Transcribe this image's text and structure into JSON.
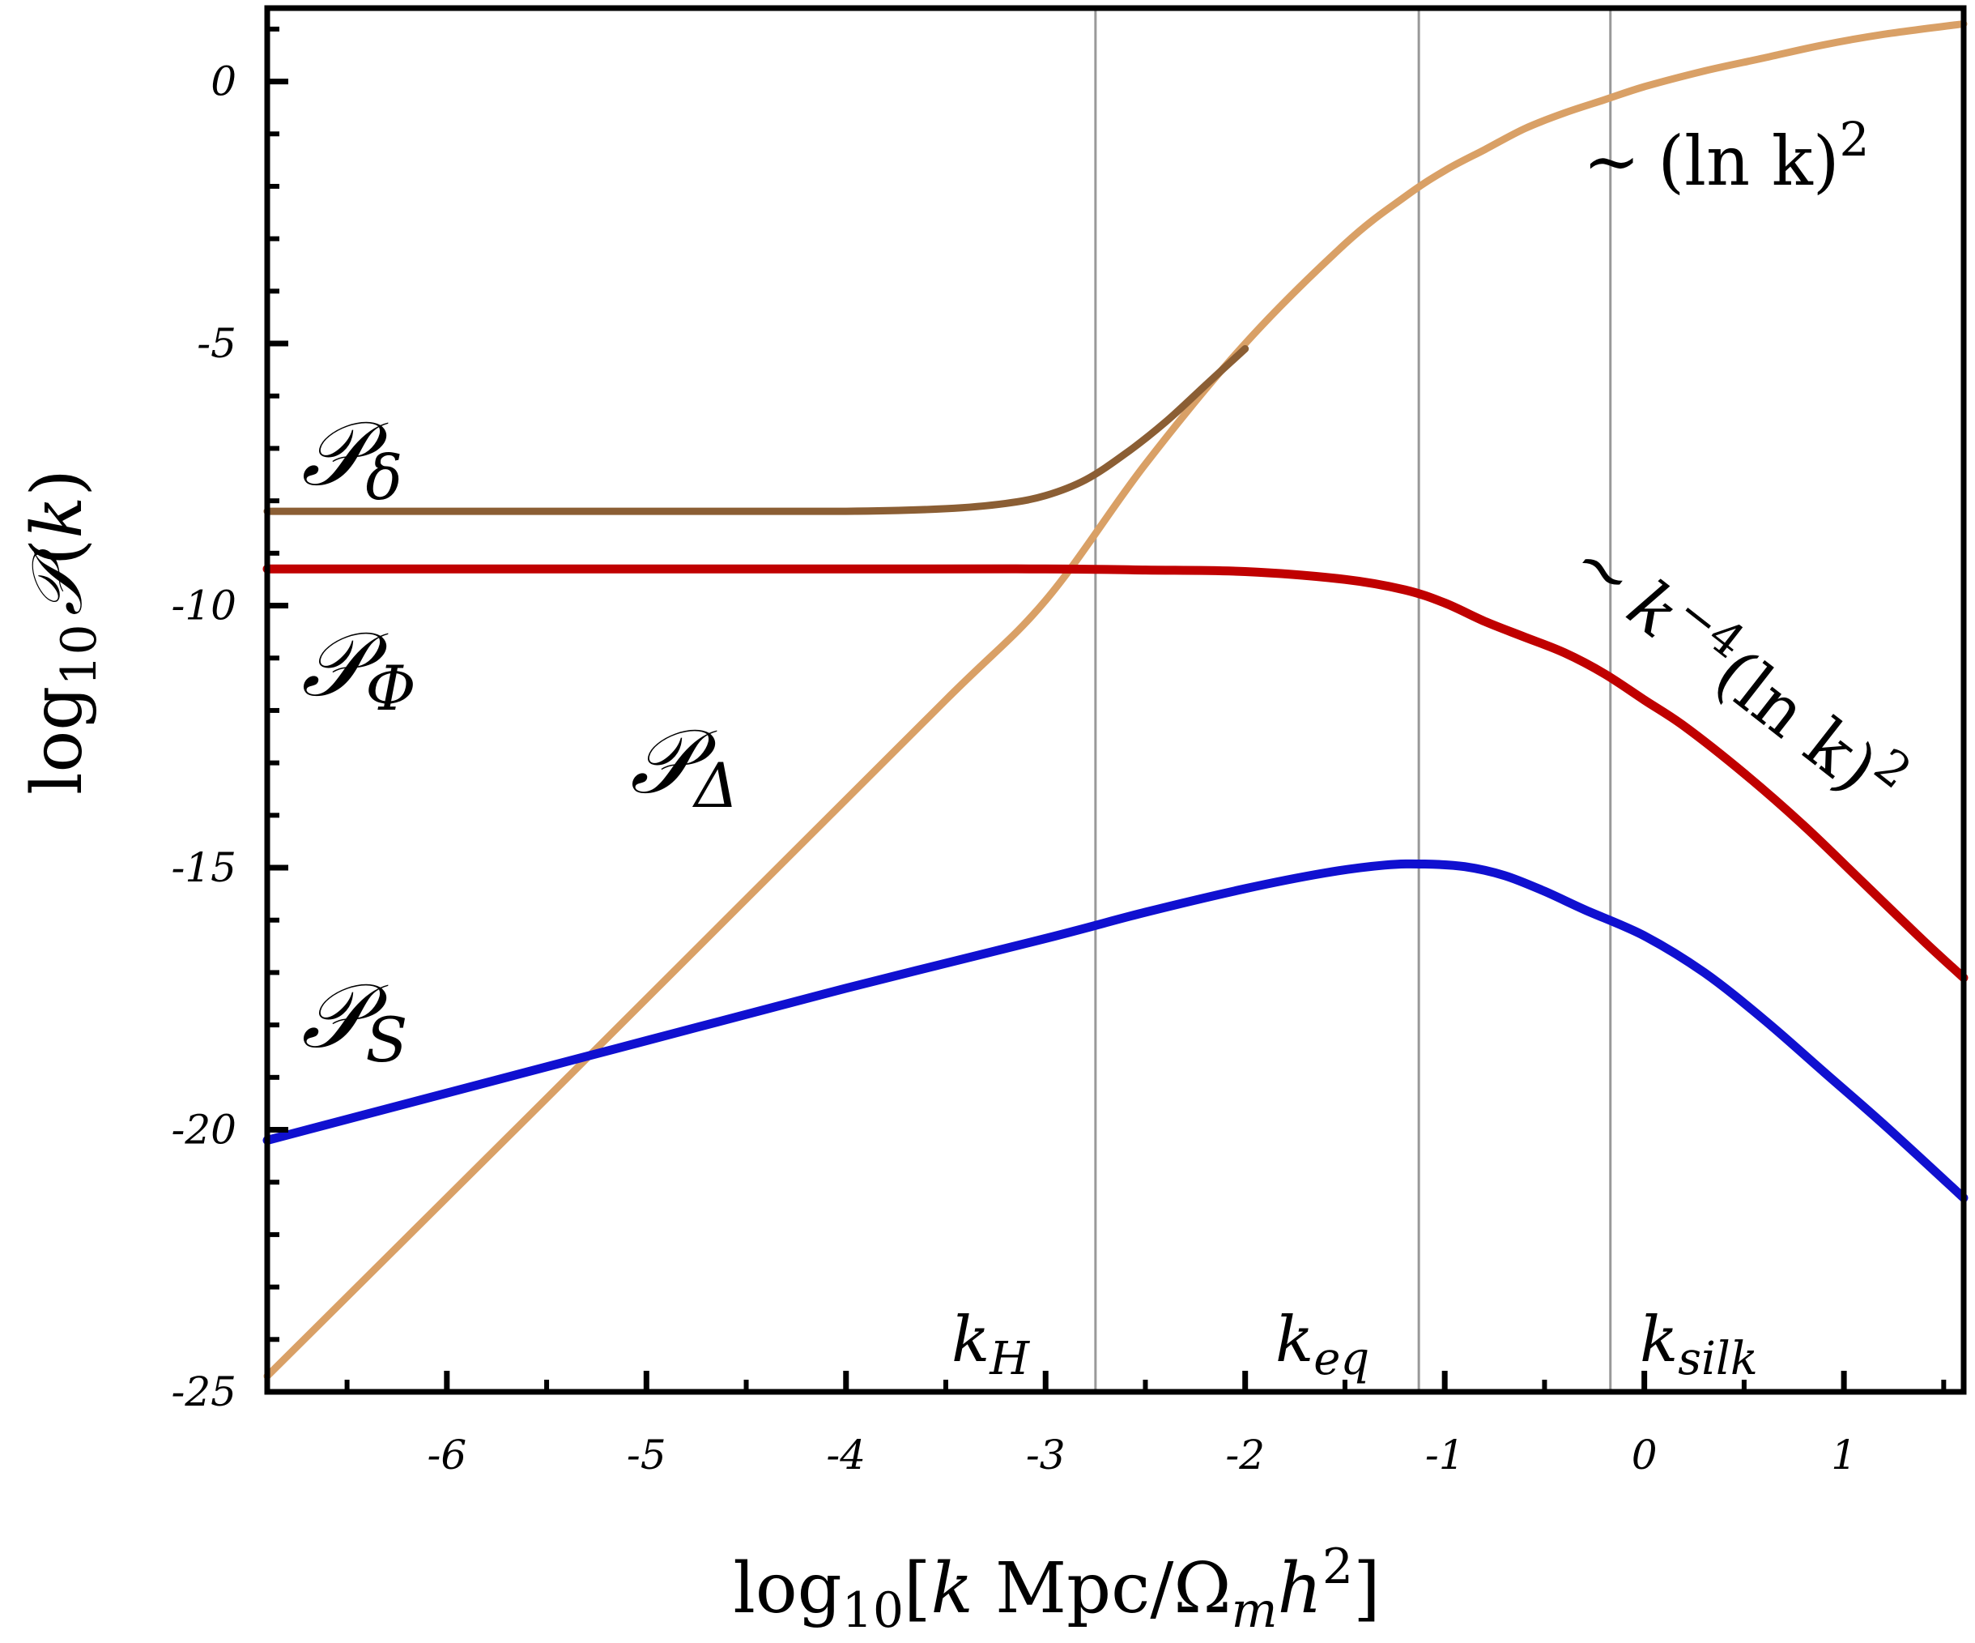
{
  "chart_data": {
    "type": "line",
    "xlabel": {
      "prefix": "log",
      "sub": "10",
      "bracket_open": "[",
      "k": "k",
      "unit": " Mpc/Ω",
      "m": "m",
      "h": "h",
      "exp": "2",
      "bracket_close": "]"
    },
    "ylabel": {
      "prefix": "log",
      "sub": "10",
      "P": "𝒫",
      "paren_open": "(",
      "k": "k",
      "paren_close": ")"
    },
    "xlim": [
      -6.9,
      1.6
    ],
    "ylim": [
      -25,
      1.4
    ],
    "xticks": [
      -6,
      -5,
      -4,
      -3,
      -2,
      -1,
      0,
      1
    ],
    "xtick_labels": [
      "-6",
      "-5",
      "-4",
      "-3",
      "-2",
      "-1",
      "0",
      "1"
    ],
    "yticks": [
      -25,
      -20,
      -15,
      -10,
      -5,
      0
    ],
    "ytick_labels": [
      "-25",
      "-20",
      "-15",
      "-10",
      "-5",
      "0"
    ],
    "vlines": [
      {
        "x": -2.75,
        "label": "k",
        "sub": "H"
      },
      {
        "x": -1.13,
        "label": "k",
        "sub": "eq"
      },
      {
        "x": -0.17,
        "label": "k",
        "sub": "silk"
      }
    ],
    "series": [
      {
        "name": "𝒫_δ",
        "color": "#8B5E34",
        "x": [
          -6.9,
          -5,
          -4,
          -3.5,
          -3.2,
          -3.0,
          -2.8,
          -2.6,
          -2.4,
          -2.2,
          -2.0
        ],
        "y": [
          -8.2,
          -8.2,
          -8.2,
          -8.15,
          -8.05,
          -7.9,
          -7.6,
          -7.1,
          -6.5,
          -5.8,
          -5.1
        ]
      },
      {
        "name": "𝒫_Φ",
        "color": "#C00000",
        "x": [
          -6.9,
          -4,
          -3,
          -2.5,
          -2,
          -1.5,
          -1.2,
          -1.0,
          -0.8,
          -0.6,
          -0.4,
          -0.2,
          0.0,
          0.2,
          0.5,
          0.8,
          1.1,
          1.4,
          1.6
        ],
        "y": [
          -9.3,
          -9.3,
          -9.3,
          -9.32,
          -9.35,
          -9.5,
          -9.7,
          -9.95,
          -10.3,
          -10.6,
          -10.9,
          -11.3,
          -11.8,
          -12.3,
          -13.2,
          -14.2,
          -15.3,
          -16.4,
          -17.1
        ]
      },
      {
        "name": "𝒫_Δ",
        "color": "#D9A066",
        "x": [
          -6.9,
          -5.5,
          -4.5,
          -3.5,
          -3.0,
          -2.5,
          -2.0,
          -1.5,
          -1.2,
          -1.0,
          -0.8,
          -0.6,
          -0.4,
          -0.2,
          0.0,
          0.3,
          0.6,
          0.9,
          1.2,
          1.6
        ],
        "y": [
          -24.7,
          -19.4,
          -15.6,
          -11.8,
          -9.9,
          -7.3,
          -5.0,
          -3.1,
          -2.2,
          -1.7,
          -1.3,
          -0.9,
          -0.6,
          -0.35,
          -0.1,
          0.2,
          0.45,
          0.7,
          0.9,
          1.1
        ]
      },
      {
        "name": "𝒫_S",
        "color": "#1010D0",
        "x": [
          -6.9,
          -6,
          -5,
          -4,
          -3,
          -2.5,
          -2.0,
          -1.6,
          -1.3,
          -1.1,
          -0.9,
          -0.7,
          -0.5,
          -0.3,
          0.0,
          0.3,
          0.6,
          0.9,
          1.2,
          1.6
        ],
        "y": [
          -20.2,
          -19.3,
          -18.3,
          -17.3,
          -16.35,
          -15.85,
          -15.4,
          -15.1,
          -14.95,
          -14.93,
          -14.98,
          -15.15,
          -15.45,
          -15.8,
          -16.3,
          -17.0,
          -17.9,
          -18.9,
          -19.9,
          -21.3
        ]
      }
    ],
    "series_labels": {
      "delta": {
        "P": "𝒫",
        "sub": "δ"
      },
      "phi": {
        "P": "𝒫",
        "sub": "Φ"
      },
      "Delta": {
        "P": "𝒫",
        "sub": "Δ"
      },
      "S": {
        "P": "𝒫",
        "sub": "S"
      }
    },
    "annotations": {
      "lnk2": {
        "tilde": "∼",
        "text": "(ln k)",
        "exp": "2"
      },
      "k4": {
        "tilde": "∼",
        "text": "k",
        "exp": "−4",
        "rest": "(ln k)",
        "exp2": "2"
      }
    }
  }
}
